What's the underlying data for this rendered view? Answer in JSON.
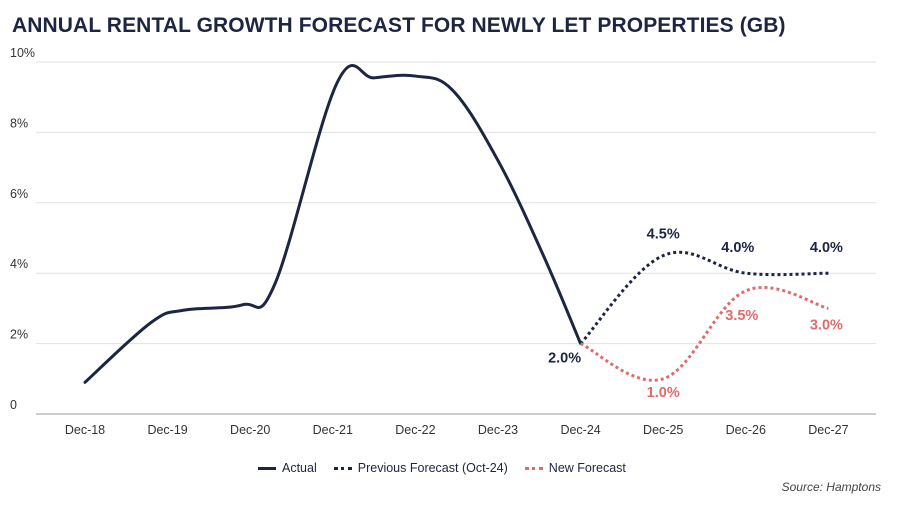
{
  "chart_data": {
    "type": "line",
    "title": "ANNUAL RENTAL GROWTH FORECAST FOR NEWLY LET PROPERTIES (GB)",
    "categories": [
      "Dec-18",
      "Dec-19",
      "Dec-20",
      "Dec-21",
      "Dec-22",
      "Dec-23",
      "Dec-24",
      "Dec-25",
      "Dec-26",
      "Dec-27"
    ],
    "ylim": [
      0,
      10
    ],
    "yticks": [
      "0",
      "2%",
      "4%",
      "6%",
      "8%",
      "10%"
    ],
    "series": [
      {
        "name": "Actual",
        "style": "solid",
        "color": "#1c2541",
        "x": [
          0,
          0.8,
          1.2,
          1.9,
          2.3,
          3.05,
          3.5,
          4.0,
          4.45,
          5.0,
          5.55,
          6.0
        ],
        "values": [
          0.9,
          2.6,
          2.95,
          3.1,
          3.7,
          9.4,
          9.55,
          9.6,
          9.2,
          7.2,
          4.5,
          2.0
        ]
      },
      {
        "name": "Previous Forecast (Oct-24)",
        "style": "dotted",
        "color": "#1c2541",
        "x": [
          6,
          7,
          8,
          9
        ],
        "values": [
          2.0,
          4.5,
          4.0,
          4.0
        ]
      },
      {
        "name": "New Forecast",
        "style": "dotted",
        "color": "#e06b6b",
        "x": [
          6,
          7,
          8,
          9
        ],
        "values": [
          2.0,
          1.0,
          3.5,
          3.0
        ]
      }
    ],
    "data_labels": [
      {
        "text": "2.0%",
        "color": "#1c2541"
      },
      {
        "text": "4.5%",
        "color": "#1c2541"
      },
      {
        "text": "4.0%",
        "color": "#1c2541"
      },
      {
        "text": "4.0%",
        "color": "#1c2541"
      },
      {
        "text": "1.0%",
        "color": "#e06b6b"
      },
      {
        "text": "3.5%",
        "color": "#e06b6b"
      },
      {
        "text": "3.0%",
        "color": "#e06b6b"
      }
    ],
    "legend": [
      "Actual",
      "Previous Forecast (Oct-24)",
      "New Forecast"
    ],
    "legend_position": "bottom",
    "grid": true
  },
  "source": "Source: Hamptons"
}
